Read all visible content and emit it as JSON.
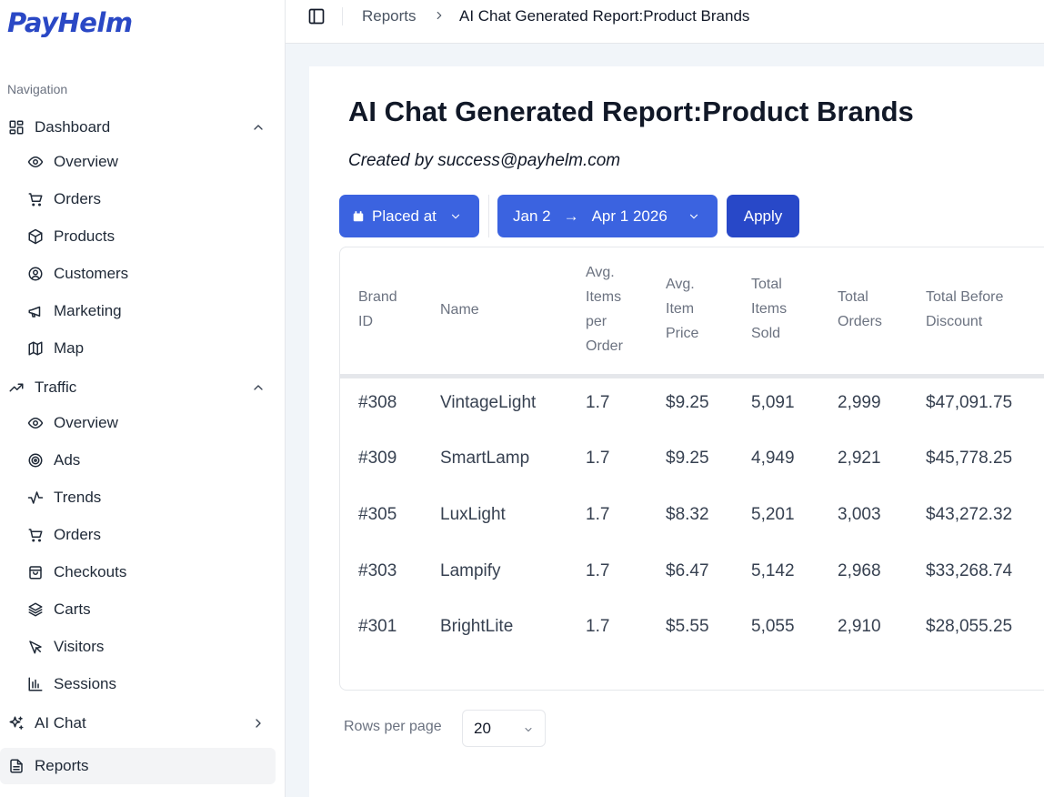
{
  "brand": {
    "logo_text": "PayHelm",
    "logo_color": "#2a48c5"
  },
  "sidebar": {
    "caption": "Navigation",
    "dashboard": {
      "label": "Dashboard",
      "items": [
        {
          "label": "Overview",
          "icon": "eye-icon"
        },
        {
          "label": "Orders",
          "icon": "cart-icon"
        },
        {
          "label": "Products",
          "icon": "box-icon"
        },
        {
          "label": "Customers",
          "icon": "user-circle-icon"
        },
        {
          "label": "Marketing",
          "icon": "megaphone-icon"
        },
        {
          "label": "Map",
          "icon": "map-icon"
        }
      ]
    },
    "traffic": {
      "label": "Traffic",
      "items": [
        {
          "label": "Overview",
          "icon": "eye-icon"
        },
        {
          "label": "Ads",
          "icon": "target-icon"
        },
        {
          "label": "Trends",
          "icon": "activity-icon"
        },
        {
          "label": "Orders",
          "icon": "cart-icon"
        },
        {
          "label": "Checkouts",
          "icon": "bag-icon"
        },
        {
          "label": "Carts",
          "icon": "layers-icon"
        },
        {
          "label": "Visitors",
          "icon": "pointer-icon"
        },
        {
          "label": "Sessions",
          "icon": "bar-chart-icon"
        }
      ]
    },
    "ai_chat": {
      "label": "AI Chat"
    },
    "reports": {
      "label": "Reports",
      "active": true
    }
  },
  "topbar": {
    "breadcrumb": [
      "Reports",
      "AI Chat Generated Report:Product Brands"
    ]
  },
  "main": {
    "title": "AI Chat Generated Report:Product Brands",
    "created_by": "Created by success@payhelm.com",
    "filters": {
      "placed_label": "Placed at",
      "date_from": "Jan 2",
      "date_arrow": "→",
      "date_to": "Apr 1 2026",
      "apply_label": "Apply"
    },
    "table": {
      "headers": [
        [
          "Brand",
          "ID"
        ],
        [
          "Name"
        ],
        [
          "Avg.",
          "Items",
          "per",
          "Order"
        ],
        [
          "Avg.",
          "Item",
          "Price"
        ],
        [
          "Total",
          "Items",
          "Sold"
        ],
        [
          "Total",
          "Orders"
        ],
        [
          "Total Before",
          "Discount"
        ]
      ],
      "rows": [
        [
          "#308",
          "VintageLight",
          "1.7",
          "$9.25",
          "5,091",
          "2,999",
          "$47,091.75"
        ],
        [
          "#309",
          "SmartLamp",
          "1.7",
          "$9.25",
          "4,949",
          "2,921",
          "$45,778.25"
        ],
        [
          "#305",
          "LuxLight",
          "1.7",
          "$8.32",
          "5,201",
          "3,003",
          "$43,272.32"
        ],
        [
          "#303",
          "Lampify",
          "1.7",
          "$6.47",
          "5,142",
          "2,968",
          "$33,268.74"
        ],
        [
          "#301",
          "BrightLite",
          "1.7",
          "$5.55",
          "5,055",
          "2,910",
          "$28,055.25"
        ]
      ]
    },
    "pagination": {
      "rows_label": "Rows per page",
      "rows_value": "20"
    }
  },
  "colors": {
    "primary": "#3b63e0",
    "apply": "#2848c8",
    "background": "#f1f5f9"
  }
}
